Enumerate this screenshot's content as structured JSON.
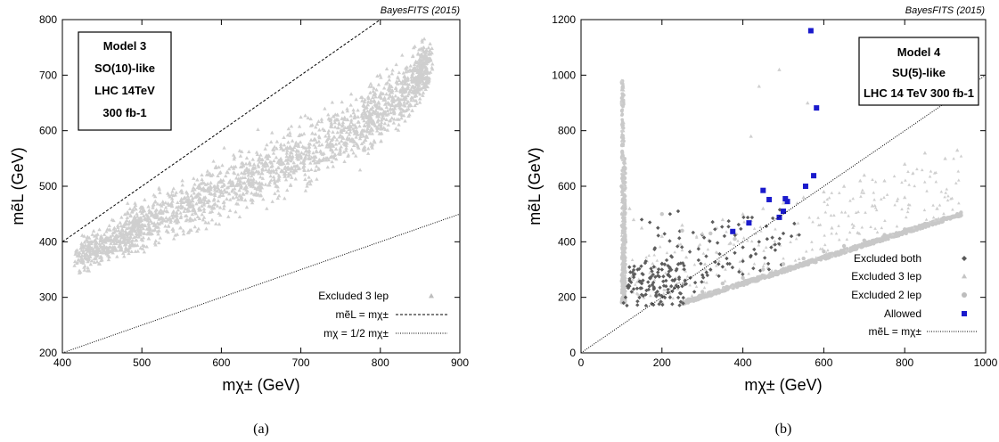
{
  "figure": {
    "panels": [
      {
        "caption": "(a)",
        "credit": "BayesFITS (2015)",
        "box_lines": [
          "Model 3",
          "SO(10)-like",
          "LHC 14TeV",
          "300 fb-1"
        ]
      },
      {
        "caption": "(b)",
        "credit": "BayesFITS (2015)",
        "box_lines": [
          "Model 4",
          "SU(5)-like",
          "LHC 14 TeV 300 fb-1"
        ]
      }
    ]
  },
  "chart_data": [
    {
      "type": "scatter",
      "xlabel": "mχ± (GeV)",
      "ylabel": "mẽL (GeV)",
      "xlim": [
        400,
        900
      ],
      "ylim": [
        200,
        800
      ],
      "xticks": [
        400,
        500,
        600,
        700,
        800,
        900
      ],
      "yticks": [
        200,
        300,
        400,
        500,
        600,
        700,
        800
      ],
      "legend_position": "bottom-right",
      "series": [
        {
          "name": "Excluded 3 lep",
          "marker": "triangle",
          "color": "#cfcfcf",
          "distribution": "dense band",
          "x": [
            420,
            450,
            480,
            500,
            540,
            580,
            620,
            660,
            700,
            740,
            780,
            800,
            830,
            850,
            860
          ],
          "y": [
            375,
            390,
            415,
            430,
            455,
            480,
            505,
            530,
            555,
            585,
            610,
            640,
            670,
            700,
            730
          ],
          "spread": [
            25,
            25,
            30,
            35,
            40,
            45,
            45,
            45,
            45,
            45,
            45,
            45,
            40,
            35,
            30
          ]
        }
      ],
      "lines": [
        {
          "name": "mẽL = mχ±",
          "style": "dashed",
          "points": [
            [
              400,
              400
            ],
            [
              800,
              800
            ]
          ]
        },
        {
          "name": "mχ = 1/2 mχ±",
          "style": "dotted",
          "points": [
            [
              400,
              200
            ],
            [
              900,
              450
            ]
          ]
        }
      ]
    },
    {
      "type": "scatter",
      "xlabel": "mχ± (GeV)",
      "ylabel": "mẽL (GeV)",
      "xlim": [
        0,
        1000
      ],
      "ylim": [
        0,
        1200
      ],
      "xticks": [
        0,
        200,
        400,
        600,
        800,
        1000
      ],
      "yticks": [
        0,
        200,
        400,
        600,
        800,
        1000,
        1200
      ],
      "legend_position": "bottom-right",
      "series": [
        {
          "name": "Excluded both",
          "marker": "diamond",
          "color": "#595959",
          "x": [
            105,
            110,
            115,
            120,
            125,
            130,
            140,
            150,
            160,
            170,
            180,
            190,
            200,
            210,
            220,
            240,
            150,
            170,
            190,
            200,
            215,
            230,
            250,
            280,
            300,
            320,
            340,
            360,
            380,
            400,
            420,
            440,
            460,
            470,
            480,
            500,
            520,
            400,
            350,
            310,
            180,
            130,
            160,
            210,
            270
          ],
          "y": [
            180,
            200,
            240,
            260,
            220,
            280,
            300,
            250,
            330,
            270,
            230,
            290,
            320,
            260,
            500,
            510,
            480,
            470,
            450,
            300,
            280,
            260,
            240,
            220,
            280,
            300,
            320,
            340,
            360,
            380,
            350,
            400,
            410,
            380,
            370,
            430,
            420,
            330,
            310,
            290,
            310,
            230,
            210,
            240,
            270
          ]
        },
        {
          "name": "Excluded 3 lep",
          "marker": "triangle",
          "color": "#cfcfcf",
          "x": [
            100,
            100,
            102,
            103,
            104,
            105,
            106,
            105,
            108,
            110,
            120,
            130,
            150,
            200,
            250,
            300,
            350,
            400,
            450,
            500,
            550,
            600,
            650,
            700,
            750,
            800,
            850,
            900,
            930,
            440,
            490,
            560,
            420,
            690,
            800,
            880,
            620,
            720
          ],
          "y": [
            980,
            900,
            800,
            700,
            650,
            600,
            550,
            500,
            450,
            400,
            520,
            480,
            450,
            420,
            460,
            430,
            480,
            500,
            520,
            540,
            560,
            580,
            600,
            640,
            620,
            680,
            720,
            700,
            730,
            960,
            1020,
            900,
            780,
            620,
            560,
            520,
            450,
            530
          ]
        },
        {
          "name": "Excluded 2 lep",
          "marker": "circle",
          "color": "#c8c8c8",
          "x": [
            100,
            103,
            105,
            108,
            110,
            106,
            104,
            101,
            107,
            109,
            300,
            350,
            400,
            450,
            500,
            550,
            600,
            650,
            700,
            750,
            800,
            850,
            900,
            930,
            200,
            250,
            320,
            380
          ],
          "y": [
            600,
            550,
            500,
            450,
            400,
            350,
            300,
            260,
            480,
            520,
            220,
            250,
            270,
            300,
            320,
            340,
            365,
            385,
            405,
            425,
            445,
            465,
            485,
            500,
            500,
            440,
            430,
            410
          ]
        },
        {
          "name": "Allowed",
          "marker": "square",
          "color": "#1a1acc",
          "x": [
            375,
            415,
            450,
            465,
            490,
            500,
            505,
            510,
            555,
            568,
            575,
            582
          ],
          "y": [
            437,
            468,
            585,
            552,
            488,
            510,
            555,
            545,
            600,
            1160,
            638,
            882
          ]
        }
      ],
      "lines": [
        {
          "name": "mẽL = mχ±",
          "style": "dotted",
          "points": [
            [
              0,
              0
            ],
            [
              1000,
              1000
            ]
          ]
        }
      ]
    }
  ]
}
